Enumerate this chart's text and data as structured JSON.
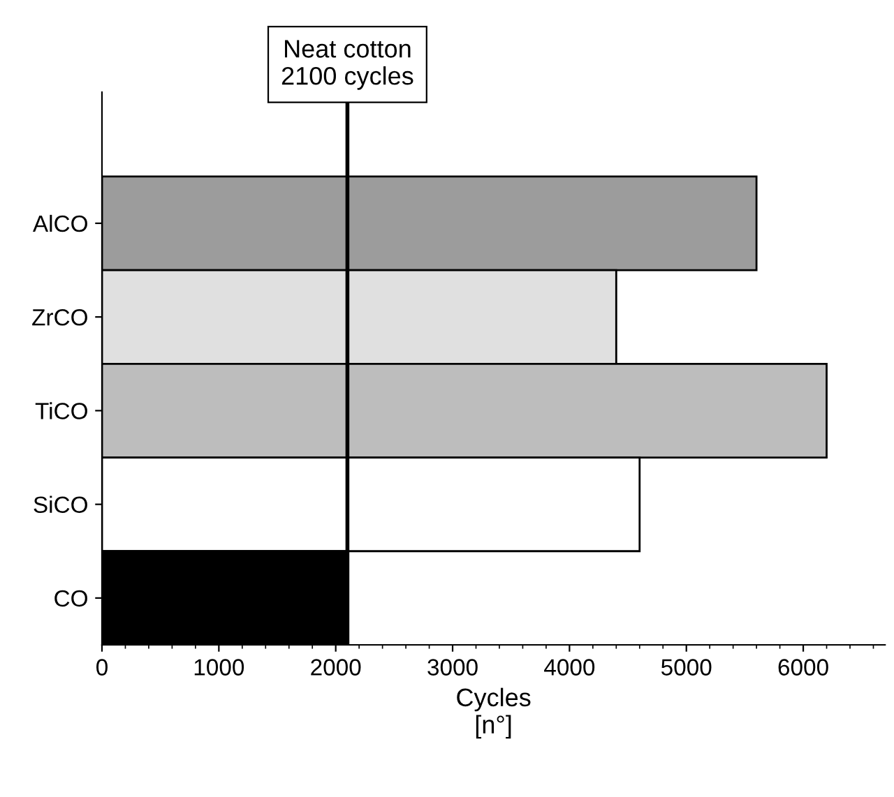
{
  "chart_data": {
    "type": "bar",
    "orientation": "horizontal",
    "xlabel": "Cycles\n[n°]",
    "categories": [
      "AlCO",
      "ZrCO",
      "TiCO",
      "SiCO",
      "CO"
    ],
    "values": [
      5600,
      4400,
      6200,
      4600,
      2100
    ],
    "colors": [
      "#9c9c9c",
      "#e0e0e0",
      "#bdbdbd",
      "#ffffff",
      "#000000"
    ],
    "xlim": [
      0,
      6700
    ],
    "xticks": [
      0,
      1000,
      2000,
      3000,
      4000,
      5000,
      6000
    ],
    "ref_lines": [
      {
        "axis": "x",
        "value": 2100,
        "label": "Neat cotton\n2100 cycles"
      }
    ],
    "grid": false,
    "legend": false
  }
}
